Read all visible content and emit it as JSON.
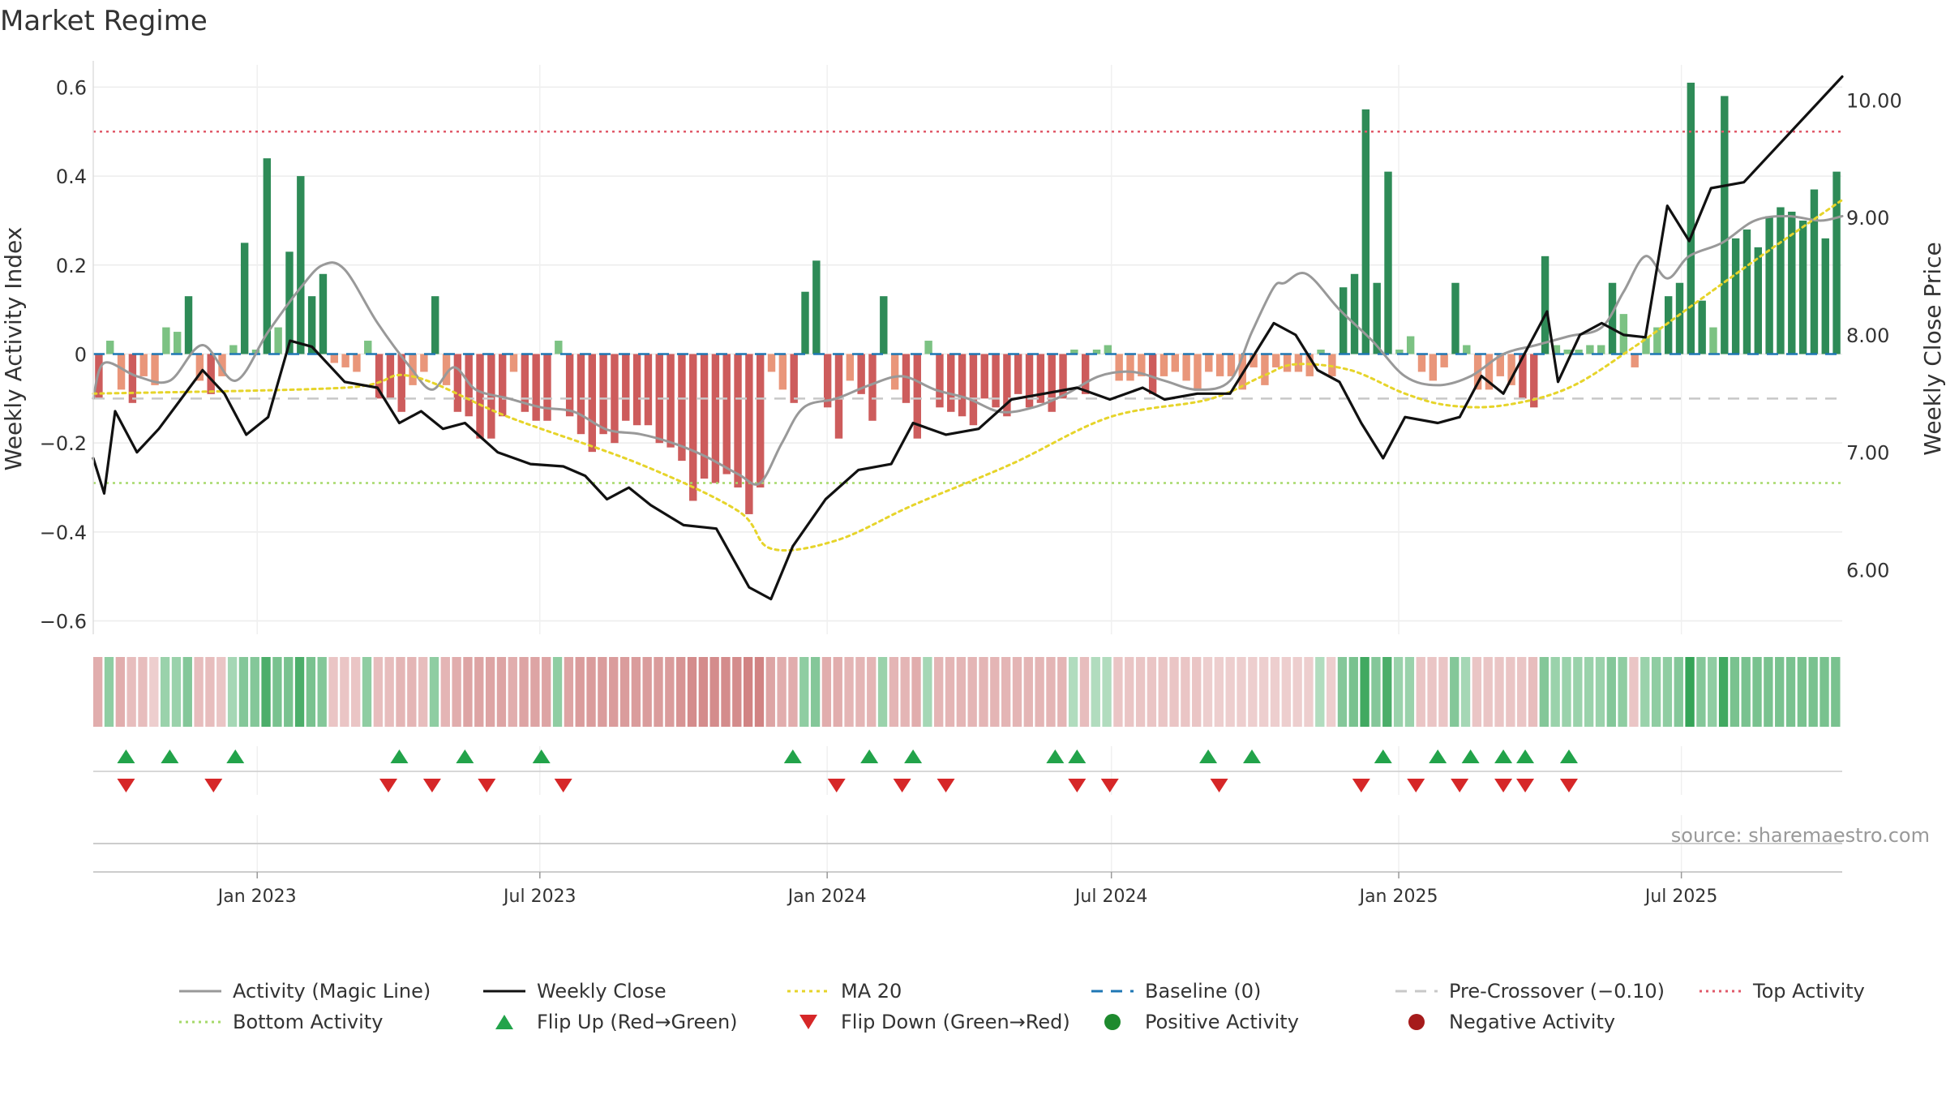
{
  "page": {
    "title": "Market Regime",
    "source": "source: sharemaestro.com"
  },
  "colors": {
    "strong_green": "#2e8b57",
    "light_green": "#7cc283",
    "strong_red": "#cd5c5c",
    "light_red": "#e9967a",
    "close_line": "#111111",
    "magic_line": "#999999",
    "ma20": "#e6d42a",
    "baseline": "#1f77b4",
    "pre_crossover": "#c8c8c8",
    "top_activity": "#e05a6a",
    "bottom_activity": "#a6d96a",
    "flip_up": "#22a34a",
    "flip_down": "#d62728"
  },
  "legend": [
    {
      "label": "Activity (Magic Line)",
      "style": "line-solid-gray"
    },
    {
      "label": "Weekly Close",
      "style": "line-solid-black"
    },
    {
      "label": "MA 20",
      "style": "line-dotted-yellow"
    },
    {
      "label": "Baseline (0)",
      "style": "line-dashed-blue"
    },
    {
      "label": "Pre-Crossover (−0.10)",
      "style": "line-dashed-gray"
    },
    {
      "label": "Top Activity",
      "style": "line-dotted-red"
    },
    {
      "label": "Bottom Activity",
      "style": "line-dotted-green"
    },
    {
      "label": "Flip Up (Red→Green)",
      "style": "triangle-up-green"
    },
    {
      "label": "Flip Down (Green→Red)",
      "style": "triangle-down-red"
    },
    {
      "label": "Positive Activity",
      "style": "dot-green"
    },
    {
      "label": "Negative Activity",
      "style": "dot-red"
    }
  ],
  "chart_data": {
    "type": "bar",
    "title": "Market Regime",
    "ylabel_left": "Weekly Activity Index",
    "ylabel_right": "Weekly Close Price",
    "left_ylim": [
      -0.63,
      0.65
    ],
    "right_ylim": [
      5.45,
      10.3
    ],
    "left_ticks": [
      0.6,
      0.4,
      0.2,
      0,
      -0.2,
      -0.4,
      -0.6
    ],
    "left_tick_labels": [
      "0.6",
      "0.4",
      "0.2",
      "0",
      "−0.2",
      "−0.4",
      "−0.6"
    ],
    "right_ticks": [
      10.0,
      9.0,
      8.0,
      7.0,
      6.0
    ],
    "right_tick_labels": [
      "10.00",
      "9.00",
      "8.00",
      "7.00",
      "6.00"
    ],
    "x_start": "2022-09-18",
    "x_end": "2025-10-12",
    "x_ticks": [
      {
        "date": "2023-01-01",
        "label": "Jan 2023"
      },
      {
        "date": "2023-07-01",
        "label": "Jul 2023"
      },
      {
        "date": "2024-01-01",
        "label": "Jan 2024"
      },
      {
        "date": "2024-07-01",
        "label": "Jul 2024"
      },
      {
        "date": "2025-01-01",
        "label": "Jan 2025"
      },
      {
        "date": "2025-07-01",
        "label": "Jul 2025"
      }
    ],
    "grid": true,
    "reference_lines": {
      "baseline": 0,
      "pre_crossover": -0.1,
      "top_activity": 0.5,
      "bottom_activity": -0.29
    },
    "series": [
      {
        "name": "Activity (Magic Line)",
        "role": "magic_line",
        "anchors": [
          [
            "2022-09-18",
            -0.1
          ],
          [
            "2022-09-25",
            -0.02
          ],
          [
            "2022-10-16",
            -0.05
          ],
          [
            "2022-11-06",
            -0.06
          ],
          [
            "2022-11-27",
            0.02
          ],
          [
            "2022-12-18",
            -0.06
          ],
          [
            "2023-01-08",
            0.05
          ],
          [
            "2023-01-29",
            0.15
          ],
          [
            "2023-02-12",
            0.2
          ],
          [
            "2023-02-26",
            0.19
          ],
          [
            "2023-03-19",
            0.07
          ],
          [
            "2023-04-09",
            -0.03
          ],
          [
            "2023-04-23",
            -0.08
          ],
          [
            "2023-05-07",
            -0.03
          ],
          [
            "2023-05-21",
            -0.08
          ],
          [
            "2023-06-11",
            -0.1
          ],
          [
            "2023-07-02",
            -0.12
          ],
          [
            "2023-07-23",
            -0.13
          ],
          [
            "2023-08-13",
            -0.17
          ],
          [
            "2023-09-03",
            -0.18
          ],
          [
            "2023-09-24",
            -0.2
          ],
          [
            "2023-10-15",
            -0.23
          ],
          [
            "2023-11-05",
            -0.27
          ],
          [
            "2023-11-19",
            -0.29
          ],
          [
            "2023-12-03",
            -0.2
          ],
          [
            "2023-12-17",
            -0.12
          ],
          [
            "2024-01-07",
            -0.1
          ],
          [
            "2024-01-28",
            -0.07
          ],
          [
            "2024-02-18",
            -0.05
          ],
          [
            "2024-03-10",
            -0.08
          ],
          [
            "2024-03-31",
            -0.1
          ],
          [
            "2024-04-21",
            -0.13
          ],
          [
            "2024-05-12",
            -0.12
          ],
          [
            "2024-06-02",
            -0.09
          ],
          [
            "2024-06-23",
            -0.05
          ],
          [
            "2024-07-14",
            -0.04
          ],
          [
            "2024-08-04",
            -0.06
          ],
          [
            "2024-08-25",
            -0.08
          ],
          [
            "2024-09-15",
            -0.06
          ],
          [
            "2024-09-29",
            0.05
          ],
          [
            "2024-10-13",
            0.15
          ],
          [
            "2024-10-20",
            0.16
          ],
          [
            "2024-11-03",
            0.18
          ],
          [
            "2024-11-24",
            0.1
          ],
          [
            "2024-12-15",
            0.03
          ],
          [
            "2025-01-05",
            -0.05
          ],
          [
            "2025-01-26",
            -0.07
          ],
          [
            "2025-02-16",
            -0.05
          ],
          [
            "2025-03-09",
            0.0
          ],
          [
            "2025-03-30",
            0.02
          ],
          [
            "2025-04-20",
            0.04
          ],
          [
            "2025-05-11",
            0.06
          ],
          [
            "2025-05-25",
            0.14
          ],
          [
            "2025-06-08",
            0.22
          ],
          [
            "2025-06-22",
            0.17
          ],
          [
            "2025-07-06",
            0.22
          ],
          [
            "2025-07-27",
            0.25
          ],
          [
            "2025-08-17",
            0.3
          ],
          [
            "2025-09-07",
            0.31
          ],
          [
            "2025-09-28",
            0.3
          ],
          [
            "2025-10-12",
            0.31
          ]
        ]
      },
      {
        "name": "Weekly Close",
        "role": "close",
        "anchors": [
          [
            "2022-09-18",
            6.95
          ],
          [
            "2022-09-25",
            6.65
          ],
          [
            "2022-10-02",
            7.35
          ],
          [
            "2022-10-16",
            7.0
          ],
          [
            "2022-10-30",
            7.2
          ],
          [
            "2022-11-13",
            7.45
          ],
          [
            "2022-11-27",
            7.7
          ],
          [
            "2022-12-11",
            7.5
          ],
          [
            "2022-12-25",
            7.15
          ],
          [
            "2023-01-08",
            7.3
          ],
          [
            "2023-01-22",
            7.95
          ],
          [
            "2023-02-05",
            7.9
          ],
          [
            "2023-02-26",
            7.6
          ],
          [
            "2023-03-19",
            7.55
          ],
          [
            "2023-04-02",
            7.25
          ],
          [
            "2023-04-16",
            7.35
          ],
          [
            "2023-04-30",
            7.2
          ],
          [
            "2023-05-14",
            7.25
          ],
          [
            "2023-06-04",
            7.0
          ],
          [
            "2023-06-25",
            6.9
          ],
          [
            "2023-07-16",
            6.88
          ],
          [
            "2023-07-30",
            6.8
          ],
          [
            "2023-08-13",
            6.6
          ],
          [
            "2023-08-27",
            6.7
          ],
          [
            "2023-09-10",
            6.55
          ],
          [
            "2023-10-01",
            6.38
          ],
          [
            "2023-10-22",
            6.35
          ],
          [
            "2023-11-12",
            5.85
          ],
          [
            "2023-11-26",
            5.75
          ],
          [
            "2023-12-10",
            6.2
          ],
          [
            "2023-12-31",
            6.6
          ],
          [
            "2024-01-21",
            6.85
          ],
          [
            "2024-02-11",
            6.9
          ],
          [
            "2024-02-25",
            7.25
          ],
          [
            "2024-03-17",
            7.15
          ],
          [
            "2024-04-07",
            7.2
          ],
          [
            "2024-04-28",
            7.45
          ],
          [
            "2024-05-19",
            7.5
          ],
          [
            "2024-06-09",
            7.55
          ],
          [
            "2024-06-30",
            7.45
          ],
          [
            "2024-07-21",
            7.55
          ],
          [
            "2024-08-04",
            7.45
          ],
          [
            "2024-08-25",
            7.5
          ],
          [
            "2024-09-15",
            7.5
          ],
          [
            "2024-09-29",
            7.8
          ],
          [
            "2024-10-13",
            8.1
          ],
          [
            "2024-10-27",
            8.0
          ],
          [
            "2024-11-10",
            7.7
          ],
          [
            "2024-11-24",
            7.6
          ],
          [
            "2024-12-08",
            7.25
          ],
          [
            "2024-12-22",
            6.95
          ],
          [
            "2025-01-05",
            7.3
          ],
          [
            "2025-01-26",
            7.25
          ],
          [
            "2025-02-09",
            7.3
          ],
          [
            "2025-02-23",
            7.65
          ],
          [
            "2025-03-09",
            7.5
          ],
          [
            "2025-03-23",
            7.85
          ],
          [
            "2025-04-06",
            8.2
          ],
          [
            "2025-04-13",
            7.6
          ],
          [
            "2025-04-27",
            8.0
          ],
          [
            "2025-05-11",
            8.1
          ],
          [
            "2025-05-25",
            8.0
          ],
          [
            "2025-06-08",
            7.98
          ],
          [
            "2025-06-22",
            9.1
          ],
          [
            "2025-07-06",
            8.8
          ],
          [
            "2025-07-20",
            9.25
          ],
          [
            "2025-08-10",
            9.3
          ],
          [
            "2025-08-31",
            9.6
          ],
          [
            "2025-09-21",
            9.9
          ],
          [
            "2025-10-12",
            10.2
          ]
        ]
      },
      {
        "name": "MA 20",
        "role": "ma20",
        "anchors": [
          [
            "2022-09-18",
            7.5
          ],
          [
            "2023-02-26",
            7.55
          ],
          [
            "2023-04-09",
            7.65
          ],
          [
            "2023-06-11",
            7.3
          ],
          [
            "2023-09-03",
            6.9
          ],
          [
            "2023-11-05",
            6.5
          ],
          [
            "2023-11-26",
            6.18
          ],
          [
            "2024-01-07",
            6.25
          ],
          [
            "2024-02-25",
            6.55
          ],
          [
            "2024-04-28",
            6.9
          ],
          [
            "2024-06-30",
            7.3
          ],
          [
            "2024-09-01",
            7.45
          ],
          [
            "2024-10-06",
            7.65
          ],
          [
            "2024-10-27",
            7.75
          ],
          [
            "2024-12-01",
            7.7
          ],
          [
            "2025-01-05",
            7.5
          ],
          [
            "2025-02-02",
            7.4
          ],
          [
            "2025-03-09",
            7.4
          ],
          [
            "2025-04-20",
            7.55
          ],
          [
            "2025-06-01",
            7.9
          ],
          [
            "2025-07-13",
            8.3
          ],
          [
            "2025-08-24",
            8.7
          ],
          [
            "2025-10-12",
            9.15
          ]
        ]
      }
    ],
    "bars": {
      "legend_positive": "Positive Activity",
      "legend_negative": "Negative Activity",
      "values": [
        -0.1,
        0.03,
        -0.08,
        -0.11,
        -0.05,
        -0.07,
        0.06,
        0.05,
        0.13,
        -0.06,
        -0.09,
        -0.05,
        0.02,
        0.25,
        0.01,
        0.44,
        0.06,
        0.23,
        0.4,
        0.13,
        0.18,
        -0.02,
        -0.03,
        -0.04,
        0.03,
        -0.1,
        -0.1,
        -0.13,
        -0.07,
        -0.04,
        0.13,
        -0.07,
        -0.13,
        -0.14,
        -0.19,
        -0.19,
        -0.14,
        -0.04,
        -0.13,
        -0.15,
        -0.15,
        0.03,
        -0.14,
        -0.18,
        -0.22,
        -0.18,
        -0.2,
        -0.15,
        -0.16,
        -0.16,
        -0.2,
        -0.21,
        -0.24,
        -0.33,
        -0.28,
        -0.29,
        -0.27,
        -0.3,
        -0.36,
        -0.3,
        -0.04,
        -0.08,
        -0.11,
        0.14,
        0.21,
        -0.12,
        -0.19,
        -0.06,
        -0.09,
        -0.15,
        0.13,
        -0.08,
        -0.11,
        -0.19,
        0.03,
        -0.12,
        -0.13,
        -0.14,
        -0.16,
        -0.1,
        -0.12,
        -0.14,
        -0.09,
        -0.12,
        -0.11,
        -0.13,
        -0.1,
        0.01,
        -0.09,
        0.01,
        0.02,
        -0.06,
        -0.06,
        -0.05,
        -0.09,
        -0.05,
        -0.04,
        -0.06,
        -0.08,
        -0.04,
        -0.05,
        -0.05,
        -0.08,
        -0.03,
        -0.07,
        -0.03,
        -0.04,
        -0.04,
        -0.05,
        0.01,
        -0.05,
        0.15,
        0.18,
        0.55,
        0.16,
        0.41,
        0.01,
        0.04,
        -0.04,
        -0.06,
        -0.03,
        0.16,
        0.02,
        -0.08,
        -0.08,
        -0.05,
        -0.07,
        -0.1,
        -0.12,
        0.22,
        0.02,
        0.01,
        0.01,
        0.02,
        0.02,
        0.16,
        0.09,
        -0.03,
        0.04,
        0.06,
        0.13,
        0.16,
        0.61,
        0.12,
        0.06,
        0.58,
        0.26,
        0.28,
        0.24,
        0.31,
        0.33,
        0.32,
        0.3,
        0.37,
        0.26,
        0.41
      ]
    },
    "strength_strip": {
      "description": "weekly regime strength heat-strip",
      "start_date": "2022-09-18",
      "values": [
        -0.5,
        0.5,
        -0.5,
        -0.4,
        -0.4,
        -0.3,
        0.45,
        0.45,
        0.55,
        -0.4,
        -0.4,
        -0.35,
        0.4,
        0.55,
        0.55,
        0.8,
        0.6,
        0.6,
        0.8,
        0.6,
        0.55,
        -0.35,
        -0.35,
        -0.35,
        0.5,
        -0.4,
        -0.4,
        -0.45,
        -0.45,
        -0.4,
        0.5,
        -0.45,
        -0.5,
        -0.55,
        -0.55,
        -0.55,
        -0.55,
        -0.5,
        -0.55,
        -0.55,
        -0.55,
        0.5,
        -0.55,
        -0.6,
        -0.6,
        -0.6,
        -0.6,
        -0.6,
        -0.6,
        -0.6,
        -0.6,
        -0.6,
        -0.65,
        -0.7,
        -0.7,
        -0.7,
        -0.7,
        -0.7,
        -0.75,
        -0.75,
        -0.55,
        -0.5,
        -0.5,
        0.5,
        0.55,
        -0.5,
        -0.5,
        -0.45,
        -0.45,
        -0.45,
        0.45,
        -0.45,
        -0.45,
        -0.5,
        0.4,
        -0.45,
        -0.45,
        -0.45,
        -0.45,
        -0.45,
        -0.45,
        -0.45,
        -0.45,
        -0.45,
        -0.45,
        -0.45,
        -0.45,
        0.35,
        -0.4,
        0.35,
        0.35,
        -0.35,
        -0.35,
        -0.35,
        -0.35,
        -0.35,
        -0.35,
        -0.35,
        -0.35,
        -0.3,
        -0.3,
        -0.3,
        -0.3,
        -0.3,
        -0.3,
        -0.3,
        -0.3,
        -0.3,
        -0.3,
        0.35,
        -0.3,
        0.55,
        0.6,
        0.85,
        0.55,
        0.8,
        0.45,
        0.45,
        -0.35,
        -0.35,
        -0.35,
        0.55,
        0.4,
        -0.35,
        -0.35,
        -0.35,
        -0.35,
        -0.35,
        -0.4,
        0.55,
        0.45,
        0.45,
        0.45,
        0.45,
        0.45,
        0.55,
        0.5,
        -0.35,
        0.45,
        0.5,
        0.5,
        0.55,
        0.9,
        0.55,
        0.5,
        0.85,
        0.6,
        0.6,
        0.6,
        0.6,
        0.6,
        0.6,
        0.6,
        0.6,
        0.6,
        0.6
      ]
    },
    "flip_up_dates": [
      "2022-10-09",
      "2022-11-06",
      "2022-12-18",
      "2023-04-02",
      "2023-05-14",
      "2023-07-02",
      "2023-12-10",
      "2024-01-28",
      "2024-02-25",
      "2024-05-26",
      "2024-06-09",
      "2024-09-01",
      "2024-09-29",
      "2024-12-22",
      "2025-01-26",
      "2025-02-16",
      "2025-03-09",
      "2025-03-23",
      "2025-04-20"
    ],
    "flip_down_dates": [
      "2022-10-09",
      "2022-12-04",
      "2023-03-26",
      "2023-04-23",
      "2023-05-28",
      "2023-07-16",
      "2024-01-07",
      "2024-02-18",
      "2024-03-17",
      "2024-06-09",
      "2024-06-30",
      "2024-09-08",
      "2024-12-08",
      "2025-01-12",
      "2025-02-09",
      "2025-03-09",
      "2025-03-23",
      "2025-04-20"
    ]
  }
}
